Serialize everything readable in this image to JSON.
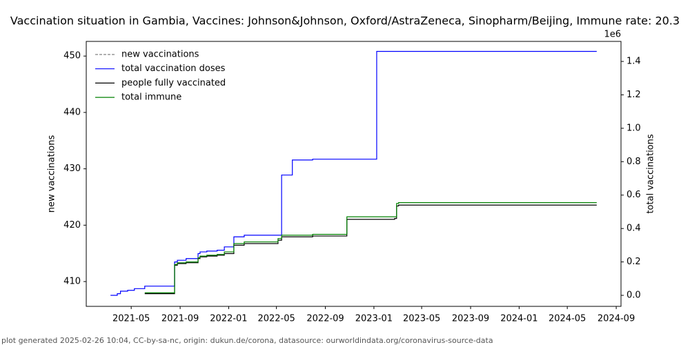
{
  "chart_data": {
    "type": "line",
    "title": "Vaccination situation in Gambia, Vaccines: Johnson&Johnson, Oxford/AstraZeneca, Sinopharm/Beijing, Immune rate: 20.3",
    "y_label": "new vaccinations",
    "y2_label": "total vaccinations",
    "y2_offset": "1e6",
    "footer": "plot generated 2025-02-26 10:04, CC-by-sa-nc, origin: dukun.de/corona, datasource: ourworldindata.org/coronavirus-source-data",
    "step": true,
    "legend": "upper left",
    "xlim": [
      "2021-01-08",
      "2024-09-13"
    ],
    "xticks": [
      {
        "value": "2021-05-01",
        "label": "2021-05"
      },
      {
        "value": "2021-09-01",
        "label": "2021-09"
      },
      {
        "value": "2022-01-01",
        "label": "2022-01"
      },
      {
        "value": "2022-05-01",
        "label": "2022-05"
      },
      {
        "value": "2022-09-01",
        "label": "2022-09"
      },
      {
        "value": "2023-01-01",
        "label": "2023-01"
      },
      {
        "value": "2023-05-01",
        "label": "2023-05"
      },
      {
        "value": "2023-09-01",
        "label": "2023-09"
      },
      {
        "value": "2024-01-01",
        "label": "2024-01"
      },
      {
        "value": "2024-05-01",
        "label": "2024-05"
      },
      {
        "value": "2024-09-01",
        "label": "2024-09"
      }
    ],
    "ylim": [
      405.6,
      452.6
    ],
    "yticks": [
      410,
      420,
      430,
      440,
      450
    ],
    "y2lim": [
      -0.066,
      1.52
    ],
    "y2ticks": [
      {
        "value": 0,
        "label": "0.0"
      },
      {
        "value": 0.2,
        "label": "0.2"
      },
      {
        "value": 0.4,
        "label": "0.4"
      },
      {
        "value": 0.6,
        "label": "0.6"
      },
      {
        "value": 0.8,
        "label": "0.8"
      },
      {
        "value": 1,
        "label": "1.0"
      },
      {
        "value": 1.2,
        "label": "1.2"
      },
      {
        "value": 1.4,
        "label": "1.4"
      }
    ],
    "series": [
      {
        "name": "new vaccinations",
        "color": "#808080",
        "dashed": true,
        "x": [],
        "values": []
      },
      {
        "name": "total vaccination doses",
        "color": "#0000ff",
        "axis": "y2",
        "x": [
          "2021-03-10",
          "2021-03-27",
          "2021-04-04",
          "2021-04-22",
          "2021-05-09",
          "2021-06-04",
          "2021-08-18",
          "2021-08-25",
          "2021-09-16",
          "2021-10-16",
          "2021-10-21",
          "2021-11-07",
          "2021-12-03",
          "2021-12-21",
          "2022-01-14",
          "2022-02-09",
          "2022-05-14",
          "2022-06-10",
          "2022-07-31",
          "2023-01-08",
          "2024-07-14"
        ],
        "values": [
          0.0,
          0.01,
          0.025,
          0.03,
          0.04,
          0.055,
          0.2,
          0.21,
          0.22,
          0.25,
          0.26,
          0.265,
          0.27,
          0.29,
          0.35,
          0.36,
          0.72,
          0.81,
          0.815,
          1.46,
          1.46
        ]
      },
      {
        "name": "people fully vaccinated",
        "color": "#000000",
        "axis": "y2",
        "x": [
          "2021-06-04",
          "2021-08-18",
          "2021-08-25",
          "2021-09-16",
          "2021-10-16",
          "2021-10-21",
          "2021-11-07",
          "2021-12-03",
          "2021-12-21",
          "2022-01-14",
          "2022-02-09",
          "2022-05-05",
          "2022-05-14",
          "2022-07-31",
          "2022-10-25",
          "2023-02-22",
          "2023-02-27",
          "2023-03-04",
          "2024-07-14"
        ],
        "values": [
          0.01,
          0.18,
          0.19,
          0.195,
          0.22,
          0.23,
          0.235,
          0.24,
          0.25,
          0.3,
          0.31,
          0.33,
          0.35,
          0.355,
          0.455,
          0.46,
          0.535,
          0.54,
          0.54
        ]
      },
      {
        "name": "total immune",
        "color": "#008000",
        "axis": "y2",
        "x": [
          "2021-06-04",
          "2021-08-18",
          "2021-08-25",
          "2021-09-16",
          "2021-10-16",
          "2021-10-21",
          "2021-11-07",
          "2021-12-03",
          "2021-12-21",
          "2022-01-14",
          "2022-02-09",
          "2022-05-05",
          "2022-05-14",
          "2022-07-31",
          "2022-10-25",
          "2023-02-22",
          "2023-02-27",
          "2023-03-04",
          "2024-07-14"
        ],
        "values": [
          0.015,
          0.185,
          0.195,
          0.2,
          0.225,
          0.235,
          0.24,
          0.245,
          0.26,
          0.31,
          0.32,
          0.34,
          0.36,
          0.365,
          0.47,
          0.47,
          0.55,
          0.555,
          0.555
        ]
      }
    ]
  }
}
